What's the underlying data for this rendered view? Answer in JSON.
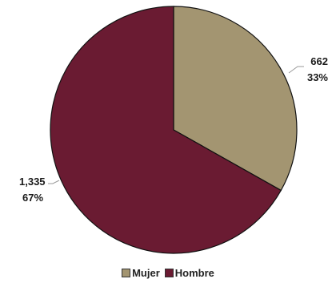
{
  "chart_data": {
    "type": "pie",
    "title": "",
    "slices": [
      {
        "label": "Mujer",
        "value": 662,
        "value_text": "662",
        "percent_text": "33%",
        "color": "#a39571"
      },
      {
        "label": "Hombre",
        "value": 1335,
        "value_text": "1,335",
        "percent_text": "67%",
        "color": "#6a1b32"
      }
    ],
    "legend_position": "bottom",
    "start_angle_deg": 0,
    "direction": "clockwise"
  }
}
